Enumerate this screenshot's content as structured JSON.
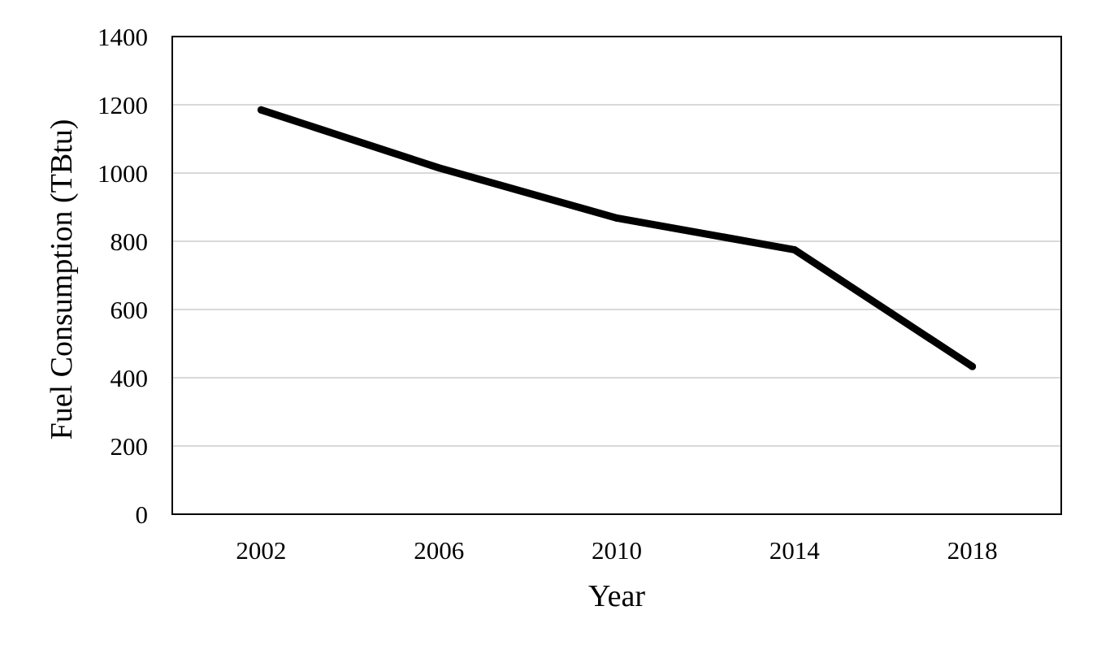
{
  "chart_data": {
    "type": "line",
    "title": "",
    "xlabel": "Year",
    "ylabel": "Fuel Consumption (TBtu)",
    "categories": [
      "2002",
      "2006",
      "2010",
      "2014",
      "2018"
    ],
    "series": [
      {
        "values": [
          1185,
          1015,
          868,
          775,
          433
        ],
        "color": "#000000"
      }
    ],
    "ylim": [
      0,
      1400
    ],
    "yticks": [
      0,
      200,
      400,
      600,
      800,
      1000,
      1200,
      1400
    ],
    "grid": true,
    "grid_color": "#d9d9d9",
    "legend": "none"
  }
}
